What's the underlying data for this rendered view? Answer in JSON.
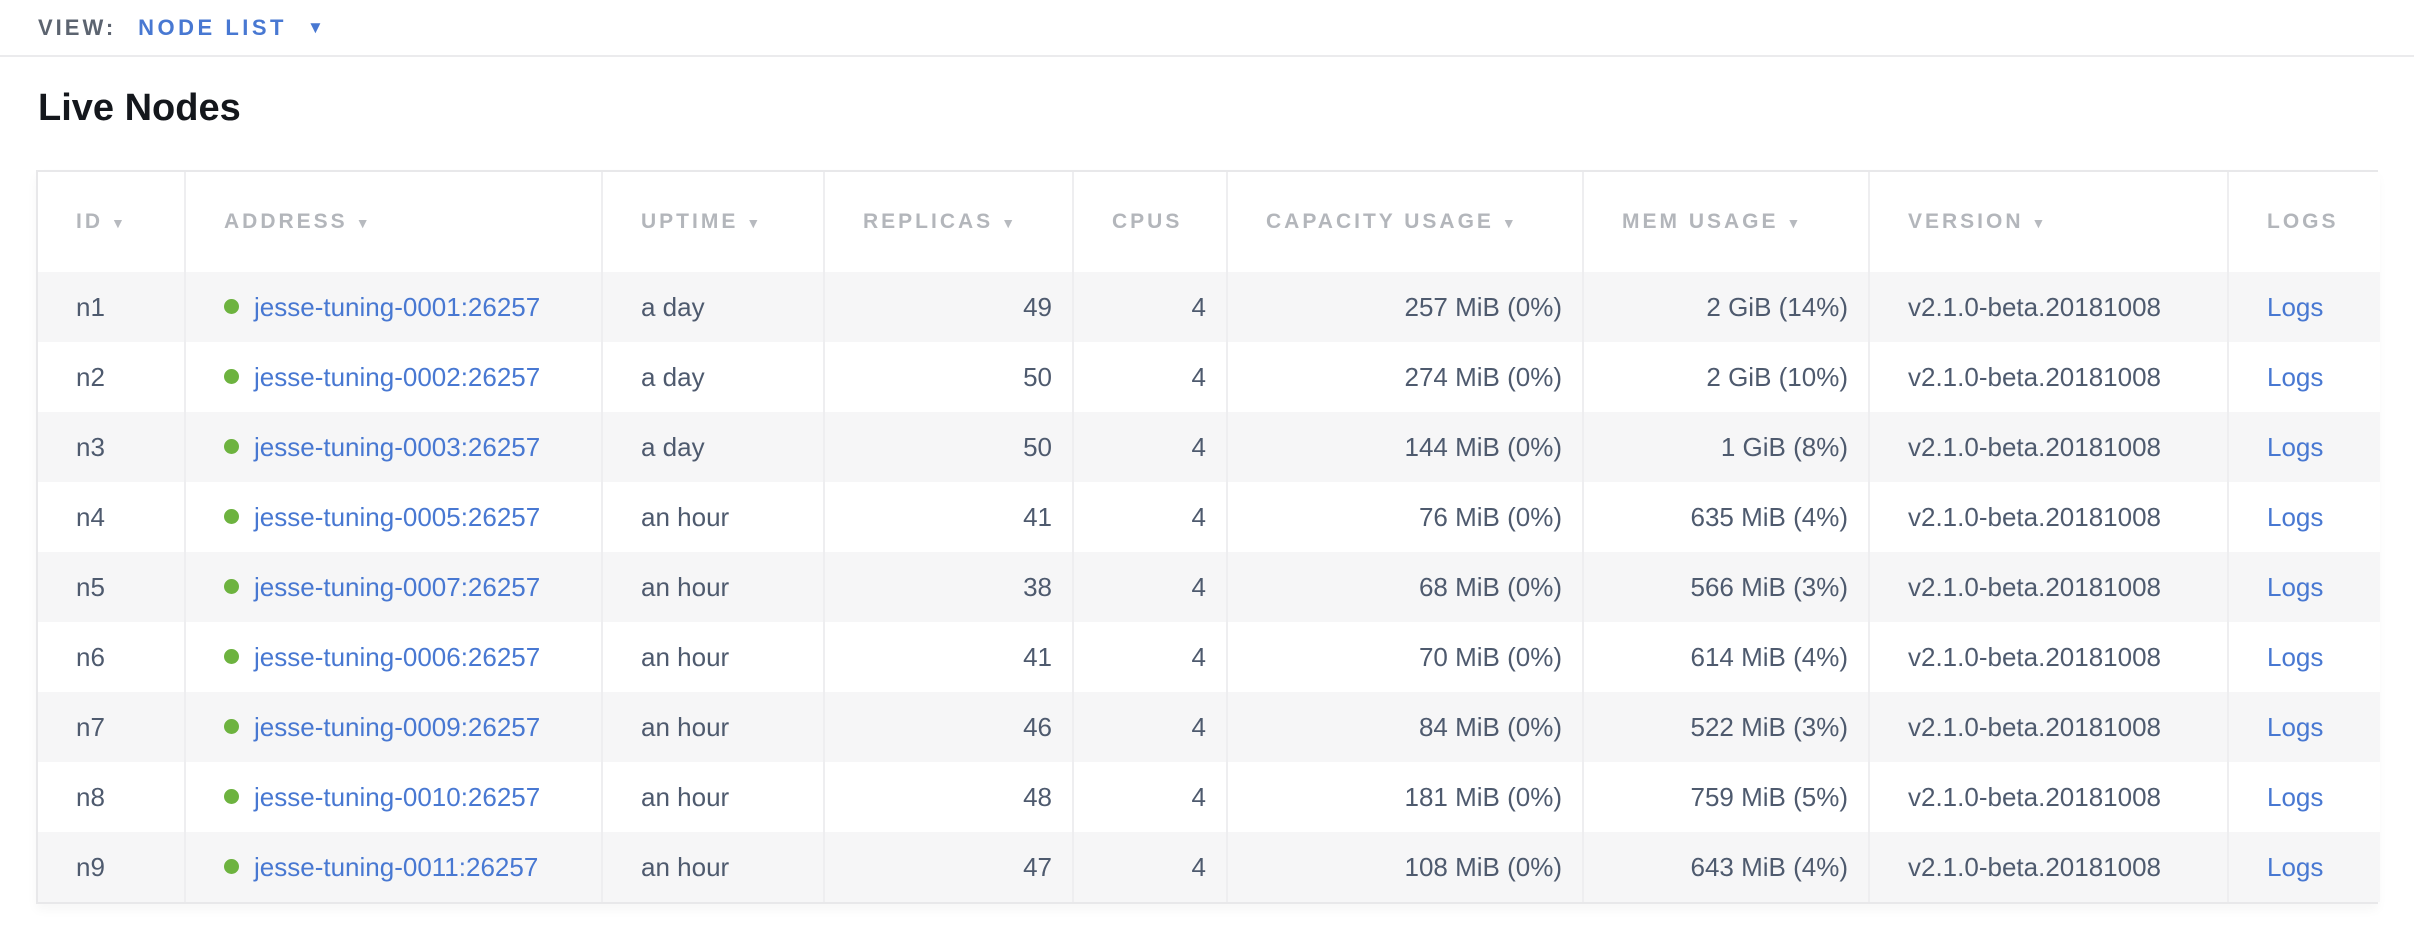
{
  "view_bar": {
    "label": "VIEW:",
    "selected": "NODE LIST",
    "caret_icon": "▼"
  },
  "page": {
    "title": "Live Nodes"
  },
  "colors": {
    "link_blue": "#4878d2",
    "live_dot_green": "#6db33f",
    "header_gray": "#b3b6bb",
    "row_text": "#4e5a6e"
  },
  "table": {
    "sort_icon": "▼",
    "columns": [
      {
        "key": "id",
        "label": "ID",
        "sorted": true
      },
      {
        "key": "address",
        "label": "ADDRESS",
        "sorted": true
      },
      {
        "key": "uptime",
        "label": "UPTIME",
        "sorted": true
      },
      {
        "key": "replicas",
        "label": "REPLICAS",
        "sorted": true
      },
      {
        "key": "cpus",
        "label": "CPUS",
        "sorted": false
      },
      {
        "key": "capacity",
        "label": "CAPACITY USAGE",
        "sorted": true
      },
      {
        "key": "mem",
        "label": "MEM USAGE",
        "sorted": true
      },
      {
        "key": "version",
        "label": "VERSION",
        "sorted": true
      },
      {
        "key": "logs",
        "label": "LOGS",
        "sorted": false
      }
    ],
    "rows": [
      {
        "id": "n1",
        "address": "jesse-tuning-0001:26257",
        "uptime": "a day",
        "replicas": "49",
        "cpus": "4",
        "capacity": "257 MiB (0%)",
        "mem": "2 GiB (14%)",
        "version": "v2.1.0-beta.20181008",
        "logs": "Logs"
      },
      {
        "id": "n2",
        "address": "jesse-tuning-0002:26257",
        "uptime": "a day",
        "replicas": "50",
        "cpus": "4",
        "capacity": "274 MiB (0%)",
        "mem": "2 GiB (10%)",
        "version": "v2.1.0-beta.20181008",
        "logs": "Logs"
      },
      {
        "id": "n3",
        "address": "jesse-tuning-0003:26257",
        "uptime": "a day",
        "replicas": "50",
        "cpus": "4",
        "capacity": "144 MiB (0%)",
        "mem": "1 GiB (8%)",
        "version": "v2.1.0-beta.20181008",
        "logs": "Logs"
      },
      {
        "id": "n4",
        "address": "jesse-tuning-0005:26257",
        "uptime": "an hour",
        "replicas": "41",
        "cpus": "4",
        "capacity": "76 MiB (0%)",
        "mem": "635 MiB (4%)",
        "version": "v2.1.0-beta.20181008",
        "logs": "Logs"
      },
      {
        "id": "n5",
        "address": "jesse-tuning-0007:26257",
        "uptime": "an hour",
        "replicas": "38",
        "cpus": "4",
        "capacity": "68 MiB (0%)",
        "mem": "566 MiB (3%)",
        "version": "v2.1.0-beta.20181008",
        "logs": "Logs"
      },
      {
        "id": "n6",
        "address": "jesse-tuning-0006:26257",
        "uptime": "an hour",
        "replicas": "41",
        "cpus": "4",
        "capacity": "70 MiB (0%)",
        "mem": "614 MiB (4%)",
        "version": "v2.1.0-beta.20181008",
        "logs": "Logs"
      },
      {
        "id": "n7",
        "address": "jesse-tuning-0009:26257",
        "uptime": "an hour",
        "replicas": "46",
        "cpus": "4",
        "capacity": "84 MiB (0%)",
        "mem": "522 MiB (3%)",
        "version": "v2.1.0-beta.20181008",
        "logs": "Logs"
      },
      {
        "id": "n8",
        "address": "jesse-tuning-0010:26257",
        "uptime": "an hour",
        "replicas": "48",
        "cpus": "4",
        "capacity": "181 MiB (0%)",
        "mem": "759 MiB (5%)",
        "version": "v2.1.0-beta.20181008",
        "logs": "Logs"
      },
      {
        "id": "n9",
        "address": "jesse-tuning-0011:26257",
        "uptime": "an hour",
        "replicas": "47",
        "cpus": "4",
        "capacity": "108 MiB (0%)",
        "mem": "643 MiB (4%)",
        "version": "v2.1.0-beta.20181008",
        "logs": "Logs"
      }
    ]
  }
}
